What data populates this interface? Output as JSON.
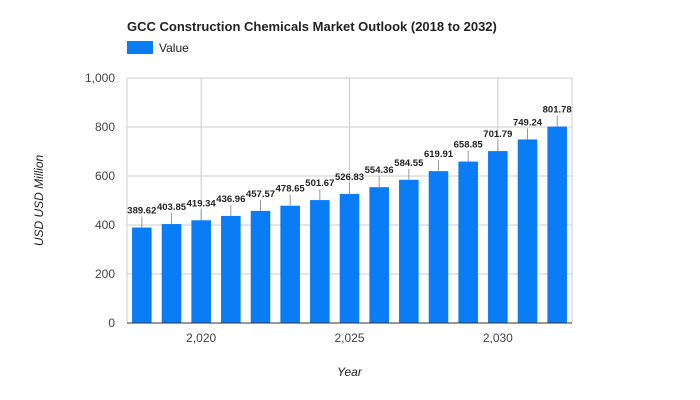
{
  "chart_data": {
    "type": "bar",
    "title": "GCC Construction Chemicals Market Outlook (2018 to 2032)",
    "xlabel": "Year",
    "ylabel": "USD USD Million",
    "legend": {
      "position": "top-left",
      "entries": [
        "Value"
      ]
    },
    "series": [
      {
        "name": "Value",
        "color": "#0a7cf6",
        "x": [
          2018,
          2019,
          2020,
          2021,
          2022,
          2023,
          2024,
          2025,
          2026,
          2027,
          2028,
          2029,
          2030,
          2031,
          2032
        ],
        "values": [
          389.62,
          403.85,
          419.34,
          436.96,
          457.57,
          478.65,
          501.67,
          526.83,
          554.36,
          584.55,
          619.91,
          658.85,
          701.79,
          749.24,
          801.78
        ],
        "labels": [
          "389.62",
          "403.85",
          "419.34",
          "436.96",
          "457.57",
          "478.65",
          "501.67",
          "526.83",
          "554.36",
          "584.55",
          "619.91",
          "658.85",
          "701.79",
          "749.24",
          "801.78"
        ]
      }
    ],
    "ylim": [
      0,
      1000
    ],
    "yticks": [
      0,
      200,
      400,
      600,
      800,
      1000
    ],
    "ytick_labels": [
      "0",
      "200",
      "400",
      "600",
      "800",
      "1,000"
    ],
    "xlim": [
      2017.5,
      2032.5
    ],
    "xticks": [
      2020,
      2025,
      2030
    ],
    "xtick_labels": [
      "2,020",
      "2,025",
      "2,030"
    ],
    "grid": true
  }
}
